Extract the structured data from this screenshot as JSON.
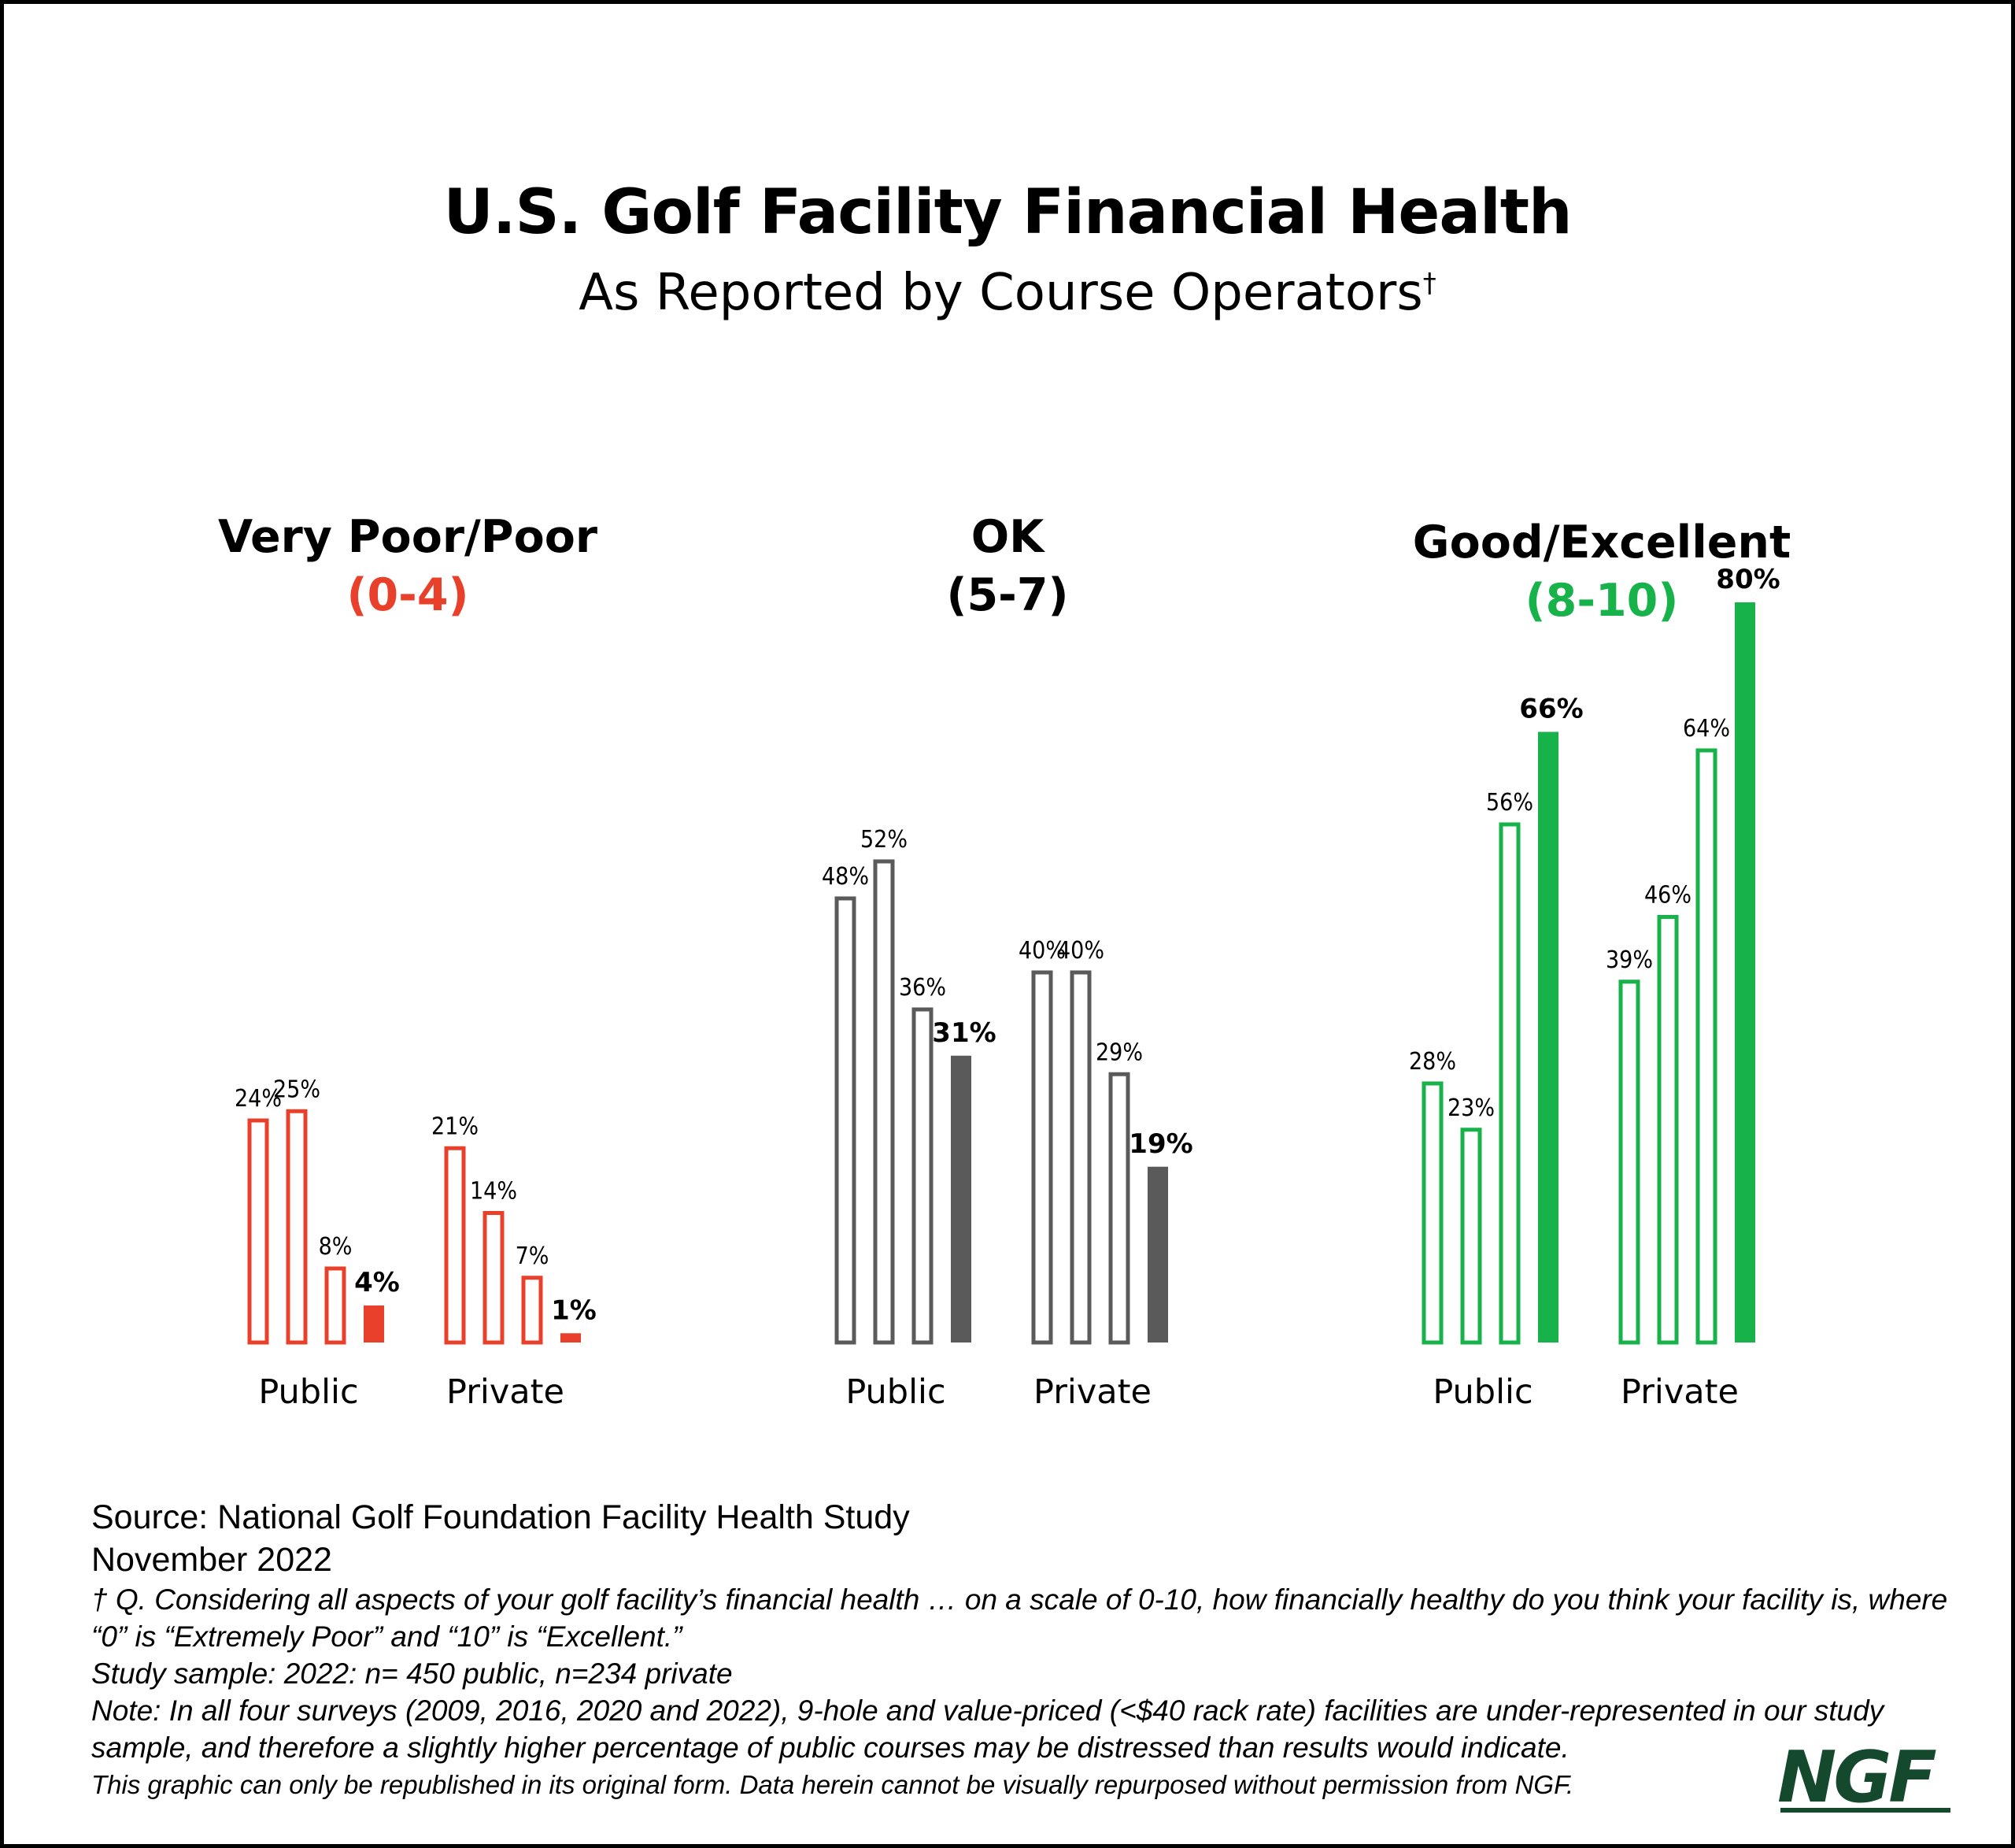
{
  "title": "U.S. Golf Facility Financial Health",
  "subtitle": "As Reported by Course Operators",
  "subtitle_mark": "†",
  "groups": [
    {
      "name": "Very Poor/Poor",
      "range": "(0-4)"
    },
    {
      "name": "OK",
      "range": "(5-7)"
    },
    {
      "name": "Good/Excellent",
      "range": "(8-10)"
    }
  ],
  "colors": {
    "very_poor_poor": "#e8402a",
    "ok": "#5a5a5a",
    "good_excellent": "#18b24b",
    "range_ok": "#000000",
    "logo": "#14492e"
  },
  "chart_data": {
    "type": "bar",
    "title": "U.S. Golf Facility Financial Health",
    "subtitle": "As Reported by Course Operators†",
    "categories": [
      "Public",
      "Private"
    ],
    "panels": [
      {
        "name": "Very Poor/Poor",
        "range": "(0-4)",
        "color": "#e8402a",
        "clusters": [
          {
            "category": "Public",
            "values": [
              24,
              25,
              8,
              4
            ],
            "labels": [
              "24%",
              "25%",
              "8%",
              "4%"
            ]
          },
          {
            "category": "Private",
            "values": [
              21,
              14,
              7,
              1
            ],
            "labels": [
              "21%",
              "14%",
              "7%",
              "1%"
            ]
          }
        ]
      },
      {
        "name": "OK",
        "range": "(5-7)",
        "color": "#5a5a5a",
        "clusters": [
          {
            "category": "Public",
            "values": [
              48,
              52,
              36,
              31
            ],
            "labels": [
              "48%",
              "52%",
              "36%",
              "31%"
            ]
          },
          {
            "category": "Private",
            "values": [
              40,
              40,
              29,
              19
            ],
            "labels": [
              "40%",
              "40%",
              "29%",
              "19%"
            ]
          }
        ]
      },
      {
        "name": "Good/Excellent",
        "range": "(8-10)",
        "color": "#18b24b",
        "clusters": [
          {
            "category": "Public",
            "values": [
              28,
              23,
              56,
              66
            ],
            "labels": [
              "28%",
              "23%",
              "56%",
              "66%"
            ]
          },
          {
            "category": "Private",
            "values": [
              39,
              46,
              64,
              80
            ],
            "labels": [
              "39%",
              "46%",
              "64%",
              "80%"
            ]
          }
        ]
      }
    ],
    "bar_style": "first three bars in each cluster outlined, last bar filled with bold label",
    "ylim": [
      0,
      80
    ],
    "grid": false,
    "legend": "none"
  },
  "footer": {
    "source": "Source: National Golf Foundation Facility Health Study",
    "date": "November 2022",
    "question": "† Q. Considering all aspects of your golf facility’s financial health … on a scale of 0-10, how financially healthy do you think your facility is, where “0” is “Extremely Poor” and “10” is “Excellent.”",
    "sample": "Study sample: 2022: n= 450 public, n=234 private",
    "note": "Note: In all four surveys (2009, 2016, 2020 and 2022), 9-hole and value-priced (<$40 rack rate) facilities are under-represented in our study sample, and therefore a slightly higher percentage of public courses may be distressed than results would indicate.",
    "disclaimer": "This graphic can only be republished in its original form. Data herein cannot be visually repurposed without permission from NGF."
  },
  "logo": "NGF"
}
